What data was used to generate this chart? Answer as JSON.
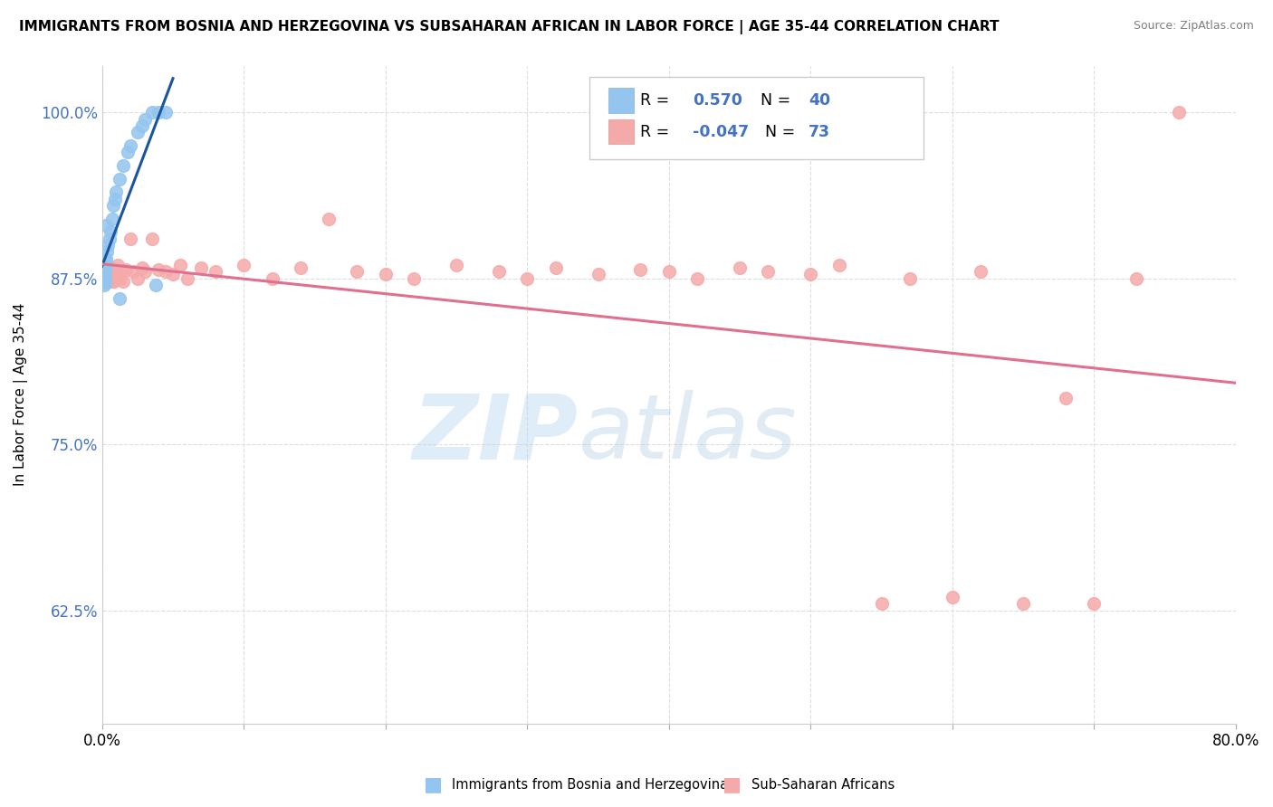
{
  "title": "IMMIGRANTS FROM BOSNIA AND HERZEGOVINA VS SUBSAHARAN AFRICAN IN LABOR FORCE | AGE 35-44 CORRELATION CHART",
  "source": "Source: ZipAtlas.com",
  "ylabel": "In Labor Force | Age 35-44",
  "xlim": [
    0.0,
    80.0
  ],
  "ylim": [
    54.0,
    103.5
  ],
  "yticks": [
    62.5,
    75.0,
    87.5,
    100.0
  ],
  "xticks": [
    0.0,
    10.0,
    20.0,
    30.0,
    40.0,
    50.0,
    60.0,
    70.0,
    80.0
  ],
  "r_bosnia": 0.57,
  "n_bosnia": 40,
  "r_subsaharan": -0.047,
  "n_subsaharan": 73,
  "color_bosnia": "#93C5EE",
  "color_subsaharan": "#F5AAAA",
  "color_bosnia_line": "#1B55A0",
  "color_subsaharan_line": "#E07090",
  "color_rvalue": "#4472C4",
  "legend_label_bosnia": "Immigrants from Bosnia and Herzegovina",
  "legend_label_subsaharan": "Sub-Saharan Africans",
  "watermark_zip": "ZIP",
  "watermark_atlas": "atlas",
  "bosnia_x": [
    0.05,
    0.05,
    0.05,
    0.05,
    0.08,
    0.08,
    0.1,
    0.1,
    0.12,
    0.12,
    0.15,
    0.15,
    0.18,
    0.18,
    0.2,
    0.2,
    0.22,
    0.25,
    0.28,
    0.3,
    0.35,
    0.4,
    0.5,
    0.6,
    0.7,
    0.8,
    0.9,
    1.0,
    1.2,
    1.5,
    1.8,
    2.0,
    2.5,
    2.8,
    3.0,
    3.5,
    4.0,
    4.5,
    3.8,
    1.2
  ],
  "bosnia_y": [
    87.5,
    87.3,
    87.7,
    88.0,
    87.5,
    88.2,
    88.0,
    87.5,
    87.8,
    88.5,
    88.0,
    87.0,
    88.3,
    87.5,
    88.5,
    87.2,
    88.0,
    91.5,
    88.8,
    89.0,
    89.5,
    90.0,
    90.5,
    91.0,
    92.0,
    93.0,
    93.5,
    94.0,
    95.0,
    96.0,
    97.0,
    97.5,
    98.5,
    99.0,
    99.5,
    100.0,
    100.0,
    100.0,
    87.0,
    86.0
  ],
  "subsaharan_x": [
    0.05,
    0.07,
    0.1,
    0.12,
    0.15,
    0.17,
    0.2,
    0.22,
    0.25,
    0.28,
    0.3,
    0.33,
    0.35,
    0.38,
    0.4,
    0.42,
    0.45,
    0.5,
    0.55,
    0.6,
    0.65,
    0.7,
    0.75,
    0.8,
    0.85,
    0.9,
    1.0,
    1.1,
    1.2,
    1.3,
    1.5,
    1.7,
    2.0,
    2.2,
    2.5,
    2.8,
    3.0,
    3.5,
    4.0,
    4.5,
    5.0,
    5.5,
    6.0,
    7.0,
    8.0,
    10.0,
    12.0,
    14.0,
    16.0,
    18.0,
    20.0,
    22.0,
    25.0,
    28.0,
    30.0,
    32.0,
    35.0,
    38.0,
    40.0,
    42.0,
    45.0,
    47.0,
    50.0,
    52.0,
    55.0,
    57.0,
    60.0,
    62.0,
    65.0,
    68.0,
    70.0,
    73.0,
    76.0
  ],
  "subsaharan_y": [
    87.5,
    88.0,
    87.3,
    88.2,
    87.8,
    88.5,
    87.5,
    88.0,
    87.3,
    87.8,
    88.2,
    87.5,
    88.0,
    87.3,
    88.2,
    87.5,
    87.8,
    88.3,
    87.5,
    88.0,
    87.3,
    88.2,
    87.5,
    88.0,
    87.3,
    88.2,
    87.5,
    88.5,
    87.5,
    88.0,
    87.3,
    88.2,
    90.5,
    88.0,
    87.5,
    88.3,
    88.0,
    90.5,
    88.2,
    88.0,
    87.8,
    88.5,
    87.5,
    88.3,
    88.0,
    88.5,
    87.5,
    88.3,
    92.0,
    88.0,
    87.8,
    87.5,
    88.5,
    88.0,
    87.5,
    88.3,
    87.8,
    88.2,
    88.0,
    87.5,
    88.3,
    88.0,
    87.8,
    88.5,
    63.0,
    87.5,
    63.5,
    88.0,
    63.0,
    78.5,
    63.0,
    87.5,
    100.0
  ]
}
